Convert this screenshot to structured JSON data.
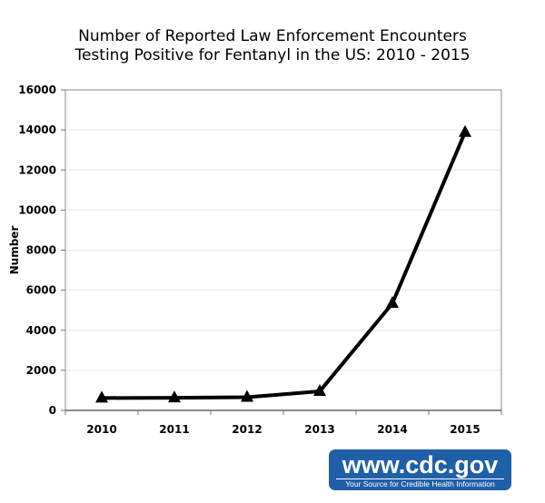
{
  "chart_data": {
    "type": "line",
    "title": "Number of Reported Law Enforcement Encounters Testing Positive for Fentanyl in the US: 2010 - 2015",
    "title_lines": [
      "Number of Reported Law Enforcement Encounters",
      "Testing Positive for Fentanyl in the US: 2010 - 2015"
    ],
    "xlabel": "",
    "ylabel": "Number",
    "categories": [
      "2010",
      "2011",
      "2012",
      "2013",
      "2014",
      "2015"
    ],
    "values": [
      618,
      630,
      656,
      950,
      5343,
      13882
    ],
    "ylim": [
      0,
      16000
    ],
    "yticks": [
      0,
      2000,
      4000,
      6000,
      8000,
      10000,
      12000,
      14000,
      16000
    ],
    "marker": "triangle",
    "grid": true,
    "line_color": "#000000"
  },
  "logo": {
    "url": "www.cdc.gov",
    "tagline": "Your Source for Credible Health Information",
    "color": "#1f5fa8"
  }
}
